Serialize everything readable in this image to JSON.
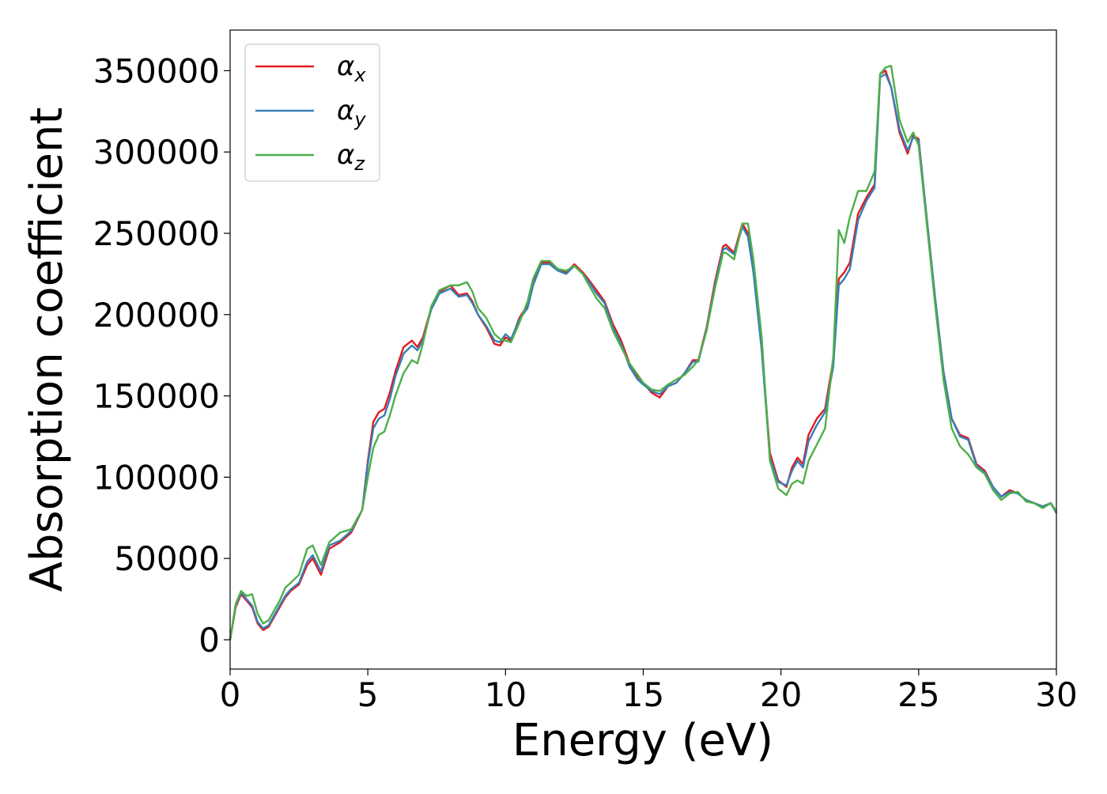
{
  "chart_data": {
    "type": "line",
    "title": "",
    "xlabel": "Energy (eV)",
    "ylabel": "Absorption coefficient",
    "xlim": [
      0,
      30
    ],
    "ylim": [
      -18000,
      375000
    ],
    "xticks": [
      0,
      5,
      10,
      15,
      20,
      25,
      30
    ],
    "xtick_labels": [
      "0",
      "5",
      "10",
      "15",
      "20",
      "25",
      "30"
    ],
    "yticks": [
      0,
      50000,
      100000,
      150000,
      200000,
      250000,
      300000,
      350000
    ],
    "ytick_labels": [
      "0",
      "50000",
      "100000",
      "150000",
      "200000",
      "250000",
      "300000",
      "350000"
    ],
    "grid": false,
    "legend_position": "top-left",
    "series": [
      {
        "name": "α_x",
        "label_base": "α",
        "label_sub": "x",
        "color": "#e41a1c",
        "x": [
          0,
          0.2,
          0.4,
          0.6,
          0.8,
          1.0,
          1.2,
          1.4,
          1.6,
          1.8,
          2.0,
          2.2,
          2.5,
          2.8,
          3.0,
          3.3,
          3.6,
          4.0,
          4.4,
          4.8,
          5.0,
          5.2,
          5.4,
          5.6,
          5.8,
          6.0,
          6.3,
          6.6,
          6.8,
          7.0,
          7.3,
          7.6,
          8.0,
          8.3,
          8.6,
          8.8,
          9.0,
          9.3,
          9.6,
          9.8,
          10.0,
          10.2,
          10.5,
          10.8,
          11.0,
          11.3,
          11.6,
          11.9,
          12.2,
          12.5,
          12.8,
          13.0,
          13.3,
          13.6,
          13.9,
          14.2,
          14.5,
          14.8,
          15.0,
          15.3,
          15.6,
          15.9,
          16.2,
          16.5,
          16.8,
          17.0,
          17.3,
          17.6,
          17.9,
          18.0,
          18.3,
          18.6,
          18.8,
          19.0,
          19.3,
          19.6,
          19.9,
          20.2,
          20.4,
          20.6,
          20.8,
          21.0,
          21.3,
          21.6,
          21.9,
          22.1,
          22.3,
          22.5,
          22.8,
          23.1,
          23.4,
          23.6,
          23.8,
          24.0,
          24.3,
          24.6,
          24.8,
          25.0,
          25.3,
          25.6,
          25.9,
          26.2,
          26.5,
          26.8,
          27.1,
          27.4,
          27.7,
          28.0,
          28.3,
          28.6,
          28.9,
          29.2,
          29.5,
          29.8,
          30.0
        ],
        "y": [
          0,
          20000,
          28000,
          24000,
          20000,
          10000,
          6000,
          8000,
          14000,
          20000,
          26000,
          30000,
          34000,
          46000,
          50000,
          40000,
          56000,
          60000,
          66000,
          80000,
          110000,
          134000,
          140000,
          142000,
          152000,
          165000,
          180000,
          184000,
          180000,
          186000,
          204000,
          214000,
          218000,
          212000,
          213000,
          208000,
          200000,
          192000,
          182000,
          181000,
          186000,
          184000,
          198000,
          206000,
          220000,
          232000,
          232000,
          228000,
          226000,
          231000,
          226000,
          222000,
          215000,
          208000,
          194000,
          184000,
          170000,
          162000,
          158000,
          152000,
          149000,
          156000,
          158000,
          164000,
          172000,
          172000,
          192000,
          220000,
          242000,
          243000,
          238000,
          256000,
          250000,
          228000,
          180000,
          115000,
          98000,
          94000,
          106000,
          112000,
          108000,
          126000,
          136000,
          142000,
          172000,
          222000,
          226000,
          232000,
          262000,
          272000,
          280000,
          348000,
          350000,
          340000,
          312000,
          299000,
          310000,
          308000,
          258000,
          210000,
          165000,
          136000,
          126000,
          124000,
          108000,
          104000,
          94000,
          88000,
          92000,
          90000,
          86000,
          84000,
          82000,
          84000,
          78000
        ]
      },
      {
        "name": "α_y",
        "label_base": "α",
        "label_sub": "y",
        "color": "#377eb8",
        "x": [
          0,
          0.2,
          0.4,
          0.6,
          0.8,
          1.0,
          1.2,
          1.4,
          1.6,
          1.8,
          2.0,
          2.2,
          2.5,
          2.8,
          3.0,
          3.3,
          3.6,
          4.0,
          4.4,
          4.8,
          5.0,
          5.2,
          5.4,
          5.6,
          5.8,
          6.0,
          6.3,
          6.6,
          6.8,
          7.0,
          7.3,
          7.6,
          8.0,
          8.3,
          8.6,
          8.8,
          9.0,
          9.3,
          9.6,
          9.8,
          10.0,
          10.2,
          10.5,
          10.8,
          11.0,
          11.3,
          11.6,
          11.9,
          12.2,
          12.5,
          12.8,
          13.0,
          13.3,
          13.6,
          13.9,
          14.2,
          14.5,
          14.8,
          15.0,
          15.3,
          15.6,
          15.9,
          16.2,
          16.5,
          16.8,
          17.0,
          17.3,
          17.6,
          17.9,
          18.0,
          18.3,
          18.6,
          18.8,
          19.0,
          19.3,
          19.6,
          19.9,
          20.2,
          20.4,
          20.6,
          20.8,
          21.0,
          21.3,
          21.6,
          21.9,
          22.1,
          22.3,
          22.5,
          22.8,
          23.1,
          23.4,
          23.6,
          23.8,
          24.0,
          24.3,
          24.6,
          24.8,
          25.0,
          25.3,
          25.6,
          25.9,
          26.2,
          26.5,
          26.8,
          27.1,
          27.4,
          27.7,
          28.0,
          28.3,
          28.6,
          28.9,
          29.2,
          29.5,
          29.8,
          30.0
        ],
        "y": [
          0,
          21000,
          29000,
          25000,
          21000,
          11000,
          7000,
          9000,
          15000,
          21000,
          27000,
          31000,
          35000,
          48000,
          52000,
          42000,
          58000,
          61000,
          67000,
          80000,
          108000,
          130000,
          136000,
          138000,
          148000,
          162000,
          176000,
          181000,
          178000,
          184000,
          203000,
          213000,
          216000,
          211000,
          212000,
          207000,
          200000,
          193000,
          184000,
          183000,
          188000,
          185000,
          197000,
          204000,
          218000,
          231000,
          231000,
          227000,
          225000,
          230000,
          225000,
          221000,
          213000,
          207000,
          192000,
          182000,
          168000,
          160000,
          157000,
          153000,
          151000,
          156000,
          158000,
          164000,
          171000,
          171000,
          191000,
          218000,
          240000,
          241000,
          237000,
          254000,
          248000,
          226000,
          178000,
          112000,
          97000,
          95000,
          104000,
          110000,
          106000,
          122000,
          132000,
          140000,
          168000,
          218000,
          222000,
          228000,
          258000,
          270000,
          278000,
          346000,
          348000,
          340000,
          314000,
          301000,
          309000,
          307000,
          258000,
          210000,
          165000,
          136000,
          125000,
          123000,
          107000,
          103000,
          94000,
          88000,
          91000,
          90000,
          86000,
          84000,
          82000,
          84000,
          78000
        ]
      },
      {
        "name": "α_z",
        "label_base": "α",
        "label_sub": "z",
        "color": "#4daf4a",
        "x": [
          0,
          0.2,
          0.4,
          0.6,
          0.8,
          1.0,
          1.2,
          1.4,
          1.6,
          1.8,
          2.0,
          2.2,
          2.5,
          2.8,
          3.0,
          3.3,
          3.6,
          4.0,
          4.4,
          4.8,
          5.0,
          5.2,
          5.4,
          5.6,
          5.8,
          6.0,
          6.3,
          6.6,
          6.8,
          7.0,
          7.3,
          7.6,
          8.0,
          8.3,
          8.6,
          8.8,
          9.0,
          9.3,
          9.6,
          9.8,
          10.0,
          10.2,
          10.5,
          10.8,
          11.0,
          11.3,
          11.6,
          11.9,
          12.2,
          12.5,
          12.8,
          13.0,
          13.3,
          13.6,
          13.9,
          14.2,
          14.5,
          14.8,
          15.0,
          15.3,
          15.6,
          15.9,
          16.2,
          16.5,
          16.8,
          17.0,
          17.3,
          17.6,
          17.9,
          18.0,
          18.3,
          18.6,
          18.8,
          19.0,
          19.3,
          19.6,
          19.9,
          20.2,
          20.4,
          20.6,
          20.8,
          21.0,
          21.3,
          21.6,
          21.9,
          22.1,
          22.3,
          22.5,
          22.8,
          23.1,
          23.4,
          23.6,
          23.8,
          24.0,
          24.3,
          24.6,
          24.8,
          25.0,
          25.3,
          25.6,
          25.9,
          26.2,
          26.5,
          26.8,
          27.1,
          27.4,
          27.7,
          28.0,
          28.3,
          28.6,
          28.9,
          29.2,
          29.5,
          29.8,
          30.0
        ],
        "y": [
          0,
          22000,
          30000,
          27000,
          28000,
          16000,
          10000,
          12000,
          18000,
          24000,
          32000,
          35000,
          40000,
          56000,
          58000,
          46000,
          60000,
          66000,
          68000,
          80000,
          100000,
          118000,
          126000,
          128000,
          138000,
          150000,
          164000,
          172000,
          170000,
          182000,
          205000,
          215000,
          218000,
          218000,
          220000,
          214000,
          204000,
          198000,
          188000,
          185000,
          184000,
          183000,
          195000,
          208000,
          222000,
          233000,
          233000,
          228000,
          227000,
          230000,
          225000,
          219000,
          210000,
          204000,
          190000,
          180000,
          170000,
          163000,
          158000,
          154000,
          153000,
          157000,
          160000,
          163000,
          168000,
          172000,
          190000,
          216000,
          238000,
          238000,
          234000,
          256000,
          256000,
          234000,
          186000,
          110000,
          93000,
          89000,
          96000,
          98000,
          96000,
          110000,
          120000,
          130000,
          174000,
          252000,
          244000,
          260000,
          276000,
          276000,
          288000,
          348000,
          352000,
          353000,
          320000,
          306000,
          312000,
          304000,
          255000,
          206000,
          160000,
          130000,
          119000,
          114000,
          106000,
          102000,
          92000,
          86000,
          90000,
          91000,
          85000,
          84000,
          81000,
          84000,
          79000
        ]
      }
    ]
  }
}
